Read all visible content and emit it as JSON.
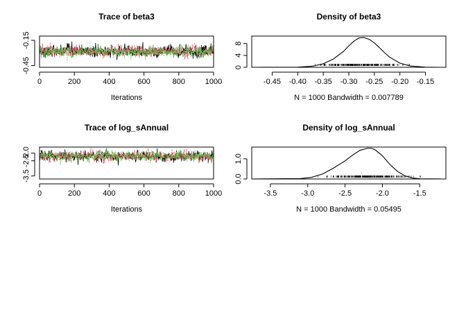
{
  "chart_data": [
    {
      "type": "line",
      "panel": "trace",
      "title": "Trace of beta3",
      "xlabel": "Iterations",
      "ylabel": "",
      "x_range": [
        1,
        1000
      ],
      "xlim": [
        0,
        1000
      ],
      "ylim": [
        -0.47,
        -0.1
      ],
      "x_ticks": [
        0,
        200,
        400,
        600,
        800,
        1000
      ],
      "x_tick_labels": [
        "0",
        "200",
        "400",
        "600",
        "800",
        "1000"
      ],
      "y_ticks": [
        -0.45,
        -0.15
      ],
      "y_tick_labels": [
        "-0.45",
        "-0.15"
      ],
      "chain_center": -0.28,
      "chain_spread": 0.03,
      "series_colors": [
        "#000000",
        "#DF536B",
        "#61D04F"
      ],
      "grid": false,
      "legend": "none"
    },
    {
      "type": "line",
      "panel": "density",
      "title": "Density of beta3",
      "xlabel": "N = 1000   Bandwidth = 0.007789",
      "ylabel": "",
      "xlim": [
        -0.49,
        -0.11
      ],
      "ylim": [
        0,
        10.5
      ],
      "x_ticks": [
        -0.45,
        -0.4,
        -0.35,
        -0.3,
        -0.25,
        -0.2,
        -0.15
      ],
      "x_tick_labels": [
        "-0.45",
        "-0.40",
        "-0.35",
        "-0.30",
        "-0.25",
        "-0.20",
        "-0.15"
      ],
      "y_ticks": [
        0,
        4,
        8
      ],
      "y_tick_labels": [
        "0",
        "4",
        "8"
      ],
      "curve": {
        "x": [
          -0.49,
          -0.4,
          -0.37,
          -0.35,
          -0.33,
          -0.31,
          -0.3,
          -0.29,
          -0.28,
          -0.27,
          -0.26,
          -0.25,
          -0.24,
          -0.23,
          -0.22,
          -0.2,
          -0.18,
          -0.15,
          -0.12
        ],
        "y": [
          0.0,
          0.05,
          0.4,
          1.2,
          2.8,
          5.4,
          7.2,
          8.8,
          9.9,
          10.0,
          9.4,
          8.2,
          6.6,
          4.9,
          3.4,
          1.4,
          0.45,
          0.05,
          0.0
        ]
      },
      "rug_mean": -0.28,
      "rug_sd": 0.04,
      "grid": false,
      "legend": "none"
    },
    {
      "type": "line",
      "panel": "trace",
      "title": "Trace of log_sAnnual",
      "xlabel": "Iterations",
      "ylabel": "",
      "x_range": [
        1,
        1000
      ],
      "xlim": [
        0,
        1000
      ],
      "ylim": [
        -3.7,
        -1.6
      ],
      "x_ticks": [
        0,
        200,
        400,
        600,
        800,
        1000
      ],
      "x_tick_labels": [
        "0",
        "200",
        "400",
        "600",
        "800",
        "1000"
      ],
      "y_ticks": [
        -3.5,
        -2.5,
        -2.0
      ],
      "y_tick_labels": [
        "-3.5",
        "-2.5",
        "-2.0"
      ],
      "chain_center": -2.2,
      "chain_spread": 0.15,
      "series_colors": [
        "#000000",
        "#DF536B",
        "#61D04F"
      ],
      "grid": false,
      "legend": "none"
    },
    {
      "type": "line",
      "panel": "density",
      "title": "Density of log_sAnnual",
      "xlabel": "N = 1000   Bandwidth = 0.05495",
      "ylabel": "",
      "xlim": [
        -3.75,
        -1.15
      ],
      "ylim": [
        0,
        1.58
      ],
      "x_ticks": [
        -3.5,
        -3.0,
        -2.5,
        -2.0,
        -1.5
      ],
      "x_tick_labels": [
        "-3.5",
        "-3.0",
        "-2.5",
        "-2.0",
        "-1.5"
      ],
      "y_ticks": [
        0.0,
        1.0
      ],
      "y_tick_labels": [
        "0.0",
        "1.0"
      ],
      "curve": {
        "x": [
          -3.75,
          -3.1,
          -2.95,
          -2.8,
          -2.65,
          -2.5,
          -2.4,
          -2.3,
          -2.2,
          -2.15,
          -2.1,
          -2.0,
          -1.9,
          -1.8,
          -1.7,
          -1.6,
          -1.5,
          -1.2
        ],
        "y": [
          0.0,
          0.02,
          0.08,
          0.25,
          0.55,
          0.9,
          1.18,
          1.42,
          1.52,
          1.52,
          1.45,
          1.15,
          0.72,
          0.38,
          0.16,
          0.05,
          0.01,
          0.0
        ]
      },
      "rug_mean": -2.2,
      "rug_sd": 0.25,
      "grid": false,
      "legend": "none"
    }
  ]
}
